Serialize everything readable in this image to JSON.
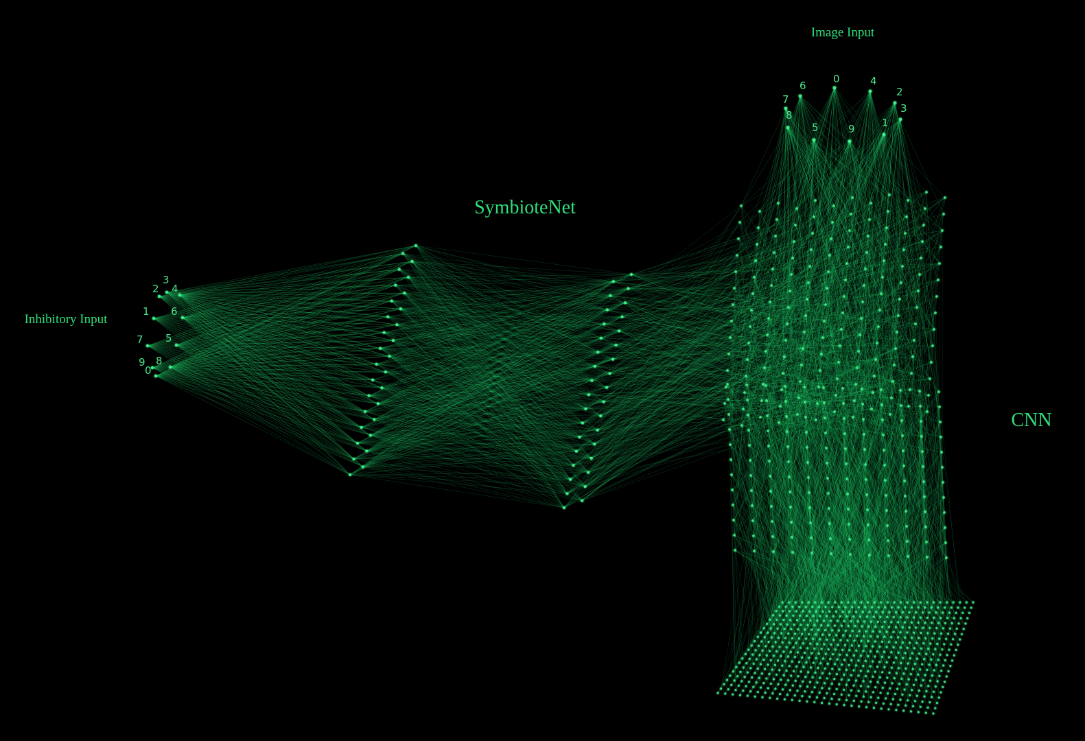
{
  "labels": {
    "symbiote_title": "SymbioteNet",
    "cnn_title": "CNN",
    "image_input": "Image Input",
    "inhibitory_input": "Inhibitory Input"
  },
  "image_input_nodes": [
    "7",
    "6",
    "0",
    "4",
    "2",
    "8",
    "5",
    "9",
    "1",
    "3"
  ],
  "inhibitory_input_nodes": [
    "3",
    "2",
    "4",
    "1",
    "6",
    "7",
    "5",
    "9",
    "8",
    "0"
  ],
  "colors": {
    "background": "#000000",
    "accent": "#2fe07a",
    "edge": "#22d46e"
  }
}
